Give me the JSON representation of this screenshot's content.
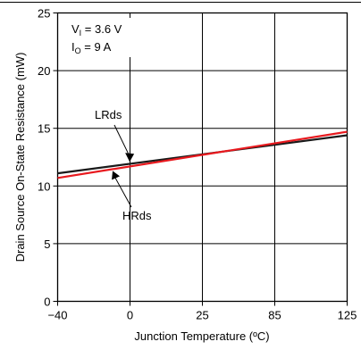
{
  "chart_data": {
    "type": "line",
    "xlabel": "Junction Temperature (ºC)",
    "ylabel": "Drain Source On-State Resistance (mW)",
    "x_tick_labels": [
      "−40",
      "0",
      "25",
      "85",
      "125"
    ],
    "y_ticks": [
      0,
      5,
      10,
      15,
      20,
      25
    ],
    "ylim": [
      0,
      25
    ],
    "grid": true,
    "conditions": [
      {
        "main": "V",
        "sub": "I",
        "rest": " = 3.6 V"
      },
      {
        "main": "I",
        "sub": "O",
        "rest": " = 9 A"
      }
    ],
    "series": [
      {
        "name": "LRds",
        "color": "#1a1a1a",
        "x": [
          "−40",
          "125"
        ],
        "values": [
          11.1,
          14.4
        ]
      },
      {
        "name": "HRds",
        "color": "#e8191e",
        "x": [
          "−40",
          "125"
        ],
        "values": [
          10.7,
          14.7
        ]
      }
    ]
  }
}
